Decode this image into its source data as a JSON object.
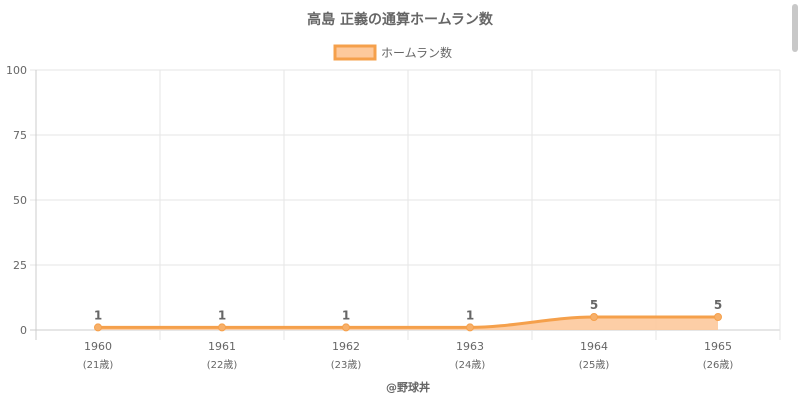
{
  "chart_data": {
    "type": "area",
    "title": "高島 正義の通算ホームラン数",
    "legend": {
      "label": "ホームラン数",
      "position": "top"
    },
    "categories": [
      "1960",
      "1961",
      "1962",
      "1963",
      "1964",
      "1965"
    ],
    "sub_labels": [
      "(21歳)",
      "(22歳)",
      "(23歳)",
      "(24歳)",
      "(25歳)",
      "(26歳)"
    ],
    "series": [
      {
        "name": "ホームラン数",
        "values": [
          1,
          1,
          1,
          1,
          5,
          5
        ]
      }
    ],
    "ylim": [
      0,
      100
    ],
    "yticks": [
      0,
      25,
      50,
      75,
      100
    ],
    "grid": true,
    "colors": {
      "line": "#f5a04b",
      "fill": "#fdc99c",
      "point": "#f7b06a",
      "grid": "#e5e5e5",
      "axis": "#cccccc"
    }
  },
  "credit": "@野球丼"
}
